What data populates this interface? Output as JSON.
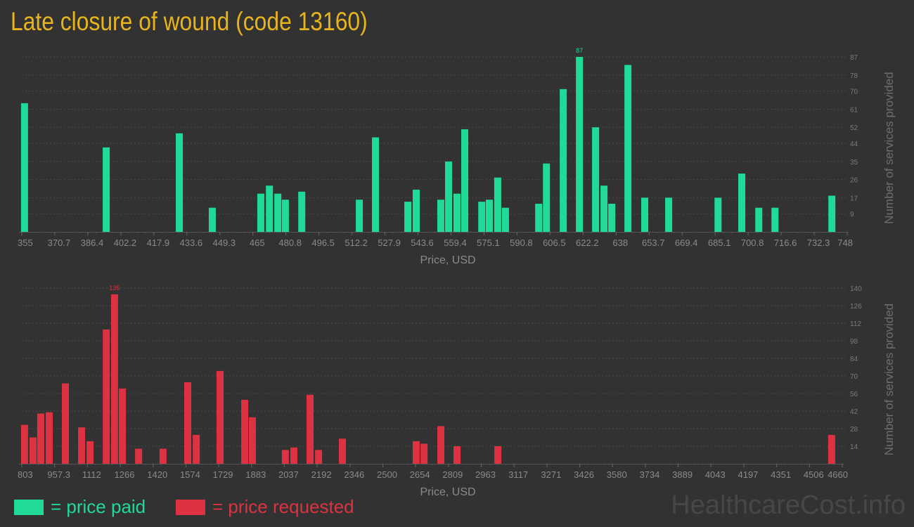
{
  "title": "Late closure of wound (code 13160)",
  "colors": {
    "paid": "#20db98",
    "requested": "#dc3242",
    "title": "#e8b41c",
    "background": "#323232"
  },
  "legend": {
    "paid": "= price paid",
    "requested": "= price requested"
  },
  "watermark": "HealthcareCost.info",
  "chart_data": [
    {
      "type": "bar",
      "name": "price paid",
      "xlabel": "Price, USD",
      "ylabel": "Number of services provided",
      "xlim": [
        355,
        748
      ],
      "ylim": [
        0,
        87
      ],
      "grid": true,
      "x_ticks": [
        "355",
        "370.7",
        "386.4",
        "402.2",
        "417.9",
        "433.6",
        "449.3",
        "465",
        "480.8",
        "496.5",
        "512.2",
        "527.9",
        "543.6",
        "559.4",
        "575.1",
        "590.8",
        "606.5",
        "622.2",
        "638",
        "653.7",
        "669.4",
        "685.1",
        "700.8",
        "716.6",
        "732.3",
        "748"
      ],
      "y_ticks": [
        9,
        17,
        26,
        35,
        44,
        52,
        61,
        70,
        78,
        87
      ],
      "max_label": "87",
      "x": [
        356.3,
        395.2,
        430,
        445.7,
        468.8,
        472.9,
        476.9,
        480.5,
        488.3,
        515.7,
        523.4,
        538.8,
        542.8,
        554.5,
        558.2,
        562.2,
        565.9,
        574,
        577.6,
        581.6,
        585.3,
        601.1,
        604.8,
        612.8,
        620.5,
        628.2,
        632.2,
        635.9,
        643.6,
        651.6,
        663,
        686.5,
        697.8,
        705.9,
        713.6,
        740.7
      ],
      "values": [
        64,
        42,
        49,
        12,
        19,
        23,
        19,
        16,
        20,
        16,
        47,
        15,
        21,
        16,
        35,
        19,
        51,
        15,
        16,
        27,
        12,
        14,
        34,
        71,
        87,
        52,
        23,
        14,
        83,
        17,
        17,
        17,
        29,
        12,
        12,
        18
      ]
    },
    {
      "type": "bar",
      "name": "price requested",
      "xlabel": "Price, USD",
      "ylabel": "Number of services provided",
      "xlim": [
        803,
        4660
      ],
      "ylim": [
        0,
        140
      ],
      "grid": true,
      "x_ticks": [
        "803",
        "957.3",
        "1112",
        "1266",
        "1420",
        "1574",
        "1729",
        "1883",
        "2037",
        "2192",
        "2346",
        "2500",
        "2654",
        "2809",
        "2963",
        "3117",
        "3271",
        "3426",
        "3580",
        "3734",
        "3889",
        "4043",
        "4197",
        "4351",
        "4506",
        "4660"
      ],
      "y_ticks": [
        14,
        28,
        42,
        56,
        70,
        84,
        98,
        112,
        126,
        140
      ],
      "max_label": "135",
      "x": [
        816,
        856,
        892,
        932,
        1008,
        1084,
        1124,
        1200,
        1239,
        1276,
        1352,
        1467,
        1583,
        1623,
        1735,
        1851,
        1887,
        2042,
        2082,
        2158,
        2198,
        2310,
        2657,
        2694,
        2773,
        2849,
        3041,
        4610
      ],
      "values": [
        31,
        21,
        40,
        41,
        64,
        29,
        18,
        107,
        135,
        60,
        12,
        12,
        65,
        23,
        74,
        51,
        37,
        11,
        13,
        55,
        11,
        20,
        18,
        16,
        30,
        14,
        14,
        23
      ]
    }
  ]
}
